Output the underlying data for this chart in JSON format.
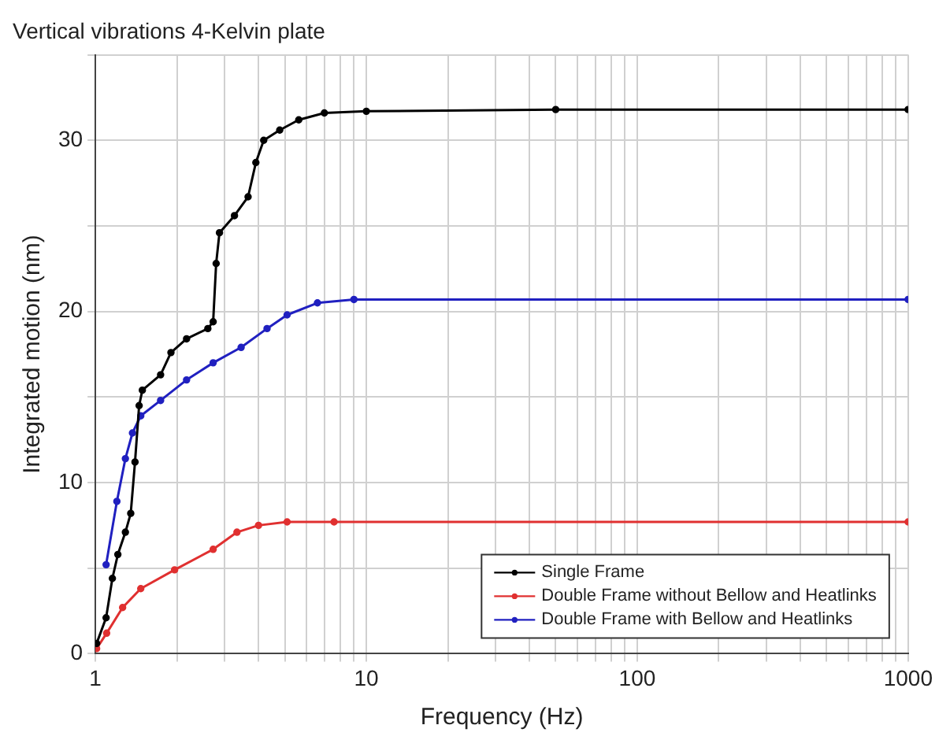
{
  "chart_data": {
    "type": "line",
    "title": "Vertical vibrations 4-Kelvin plate",
    "xlabel": "Frequency (Hz)",
    "ylabel": "Integrated motion (nm)",
    "log": "x",
    "grid": true,
    "legend": "bottom right",
    "marker": "circle",
    "line_style": "solid",
    "xlim": [
      1,
      1000
    ],
    "ylim": [
      0,
      35
    ],
    "xticks": [
      1,
      {
        "value": 2,
        "label": null
      },
      {
        "value": 3,
        "label": null
      },
      {
        "value": 4,
        "label": null
      },
      {
        "value": 5,
        "label": null
      },
      {
        "value": 6,
        "label": null
      },
      {
        "value": 7,
        "label": null
      },
      {
        "value": 8,
        "label": null
      },
      {
        "value": 9,
        "label": null
      },
      10,
      {
        "value": 20,
        "label": null
      },
      {
        "value": 30,
        "label": null
      },
      {
        "value": 40,
        "label": null
      },
      {
        "value": 50,
        "label": null
      },
      {
        "value": 60,
        "label": null
      },
      {
        "value": 70,
        "label": null
      },
      {
        "value": 80,
        "label": null
      },
      {
        "value": 90,
        "label": null
      },
      100,
      {
        "value": 200,
        "label": null
      },
      {
        "value": 300,
        "label": null
      },
      {
        "value": 400,
        "label": null
      },
      {
        "value": 500,
        "label": null
      },
      {
        "value": 600,
        "label": null
      },
      {
        "value": 700,
        "label": null
      },
      {
        "value": 800,
        "label": null
      },
      {
        "value": 900,
        "label": null
      },
      1000
    ],
    "yticks": [
      0,
      {
        "value": 5,
        "label": null
      },
      10,
      {
        "value": 15,
        "label": null
      },
      20,
      {
        "value": 25,
        "label": null
      },
      30,
      {
        "value": 35,
        "label": null
      }
    ],
    "series": [
      {
        "name": "Single Frame",
        "color": "#000000",
        "x": [
          1.01,
          1.095,
          1.155,
          1.21,
          1.29,
          1.35,
          1.4,
          1.45,
          1.49,
          1.74,
          1.9,
          2.17,
          2.6,
          2.72,
          2.79,
          2.87,
          3.26,
          3.66,
          3.91,
          4.18,
          4.79,
          5.63,
          7.0,
          10,
          50,
          1000
        ],
        "values": [
          0.6,
          2.1,
          4.4,
          5.8,
          7.1,
          8.2,
          11.2,
          14.5,
          15.4,
          16.3,
          17.6,
          18.4,
          19.0,
          19.4,
          22.8,
          24.6,
          25.6,
          26.7,
          28.7,
          30.0,
          30.6,
          31.2,
          31.6,
          31.7,
          31.8,
          31.8
        ]
      },
      {
        "name": "Double Frame without Bellow and Heatlinks",
        "color": "#e03030",
        "x": [
          1.01,
          1.1,
          1.26,
          1.47,
          1.96,
          2.72,
          3.33,
          4.0,
          5.1,
          7.6,
          1000
        ],
        "values": [
          0.3,
          1.2,
          2.7,
          3.8,
          4.9,
          6.1,
          7.1,
          7.5,
          7.7,
          7.7,
          7.7
        ]
      },
      {
        "name": "Double Frame with Bellow and Heatlinks",
        "color": "#2020c0",
        "x": [
          1.095,
          1.2,
          1.29,
          1.37,
          1.47,
          1.74,
          2.17,
          2.72,
          3.45,
          4.3,
          5.1,
          6.6,
          9.0,
          1000
        ],
        "values": [
          5.2,
          8.9,
          11.4,
          12.9,
          13.9,
          14.8,
          16.0,
          17.0,
          17.9,
          19.0,
          19.8,
          20.5,
          20.7,
          20.7
        ]
      }
    ]
  }
}
